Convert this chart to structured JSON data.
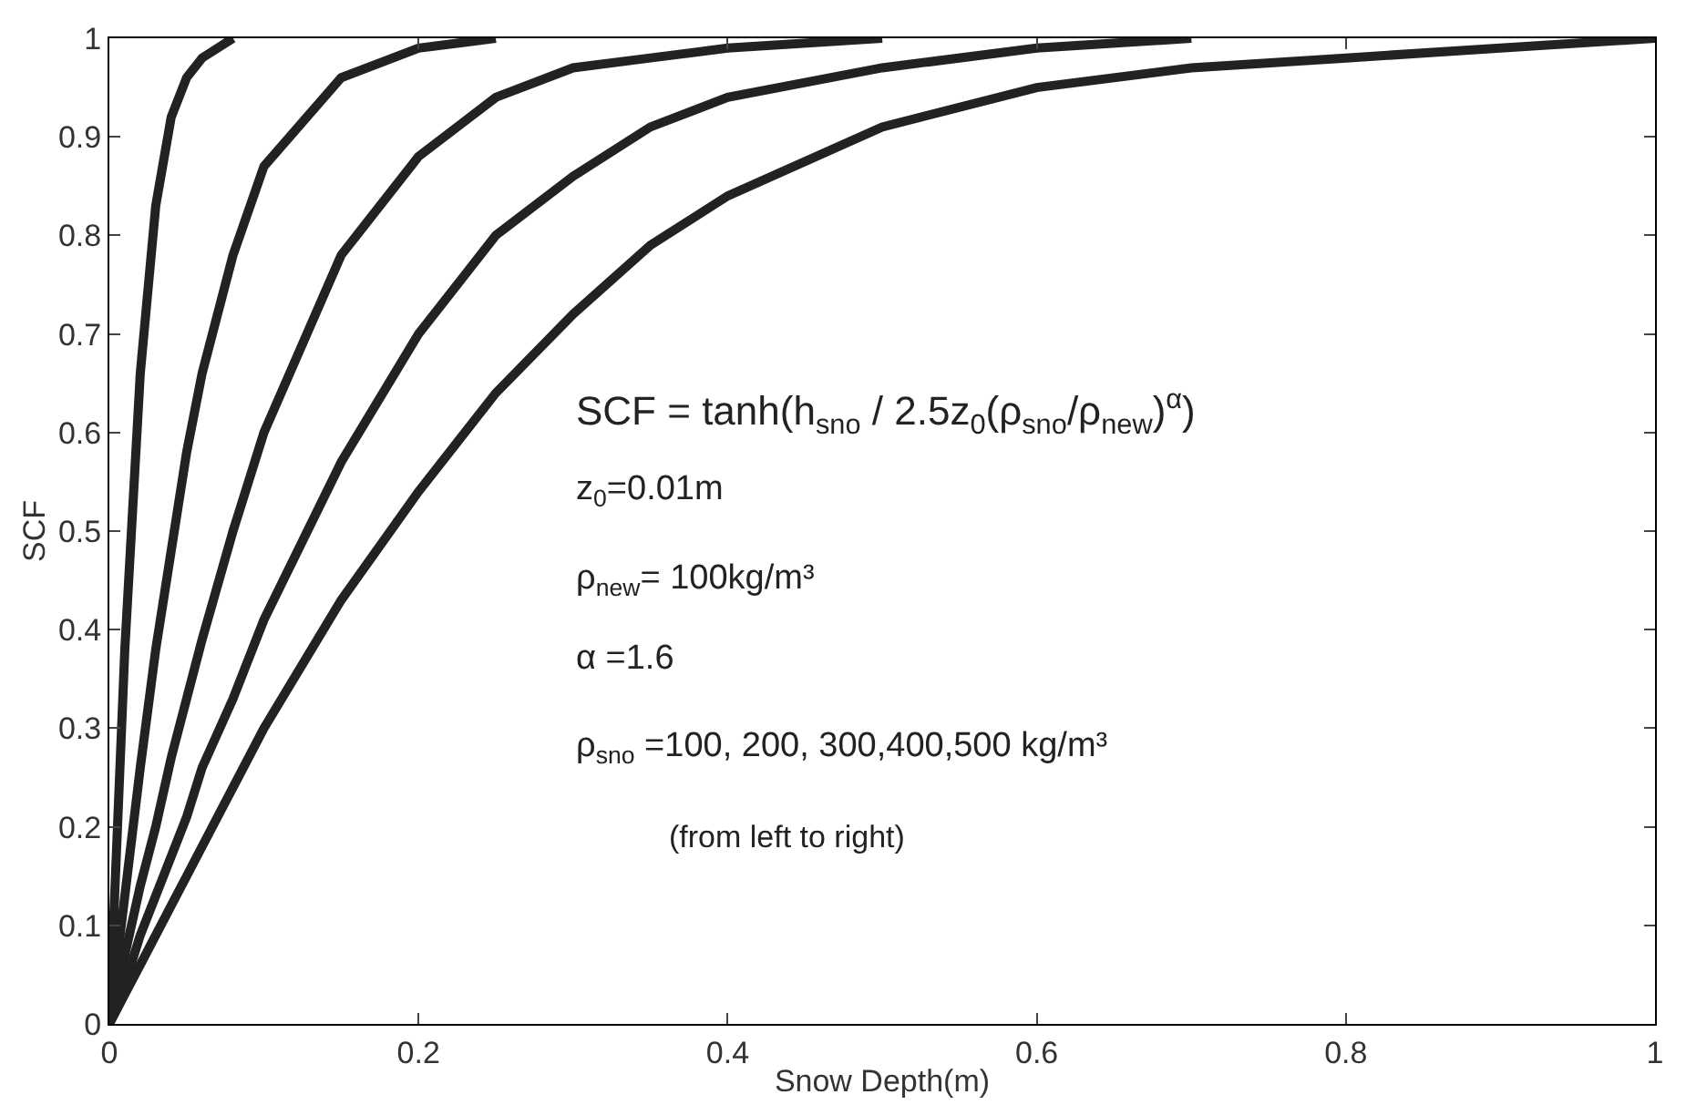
{
  "chart_data": {
    "type": "line",
    "xlabel": "Snow Depth(m)",
    "ylabel": "SCF",
    "x": [
      0,
      0.01,
      0.02,
      0.03,
      0.04,
      0.05,
      0.06,
      0.08,
      0.1,
      0.15,
      0.2,
      0.25,
      0.3,
      0.35,
      0.4,
      0.5,
      0.6,
      0.7,
      0.8,
      0.9,
      1.0
    ],
    "series": [
      {
        "color": "#222222",
        "x": [
          0,
          0.01,
          0.02,
          0.03,
          0.04,
          0.05,
          0.06,
          0.08
        ],
        "values": [
          0,
          0.38,
          0.66,
          0.83,
          0.92,
          0.96,
          0.98,
          1
        ]
      },
      {
        "color": "#222222",
        "x": [
          0,
          0.01,
          0.02,
          0.03,
          0.04,
          0.05,
          0.06,
          0.08,
          0.1,
          0.15,
          0.2,
          0.25
        ],
        "values": [
          0,
          0.13,
          0.26,
          0.38,
          0.48,
          0.58,
          0.66,
          0.78,
          0.87,
          0.96,
          0.99,
          1
        ]
      },
      {
        "color": "#222222",
        "x": [
          0,
          0.01,
          0.02,
          0.03,
          0.04,
          0.05,
          0.06,
          0.08,
          0.1,
          0.15,
          0.2,
          0.25,
          0.3,
          0.35,
          0.4,
          0.5
        ],
        "values": [
          0,
          0.07,
          0.14,
          0.2,
          0.27,
          0.33,
          0.39,
          0.5,
          0.6,
          0.78,
          0.88,
          0.94,
          0.97,
          0.98,
          0.99,
          1
        ]
      },
      {
        "color": "#222222",
        "x": [
          0,
          0.01,
          0.02,
          0.03,
          0.04,
          0.05,
          0.06,
          0.08,
          0.1,
          0.15,
          0.2,
          0.25,
          0.3,
          0.35,
          0.4,
          0.5,
          0.6,
          0.7
        ],
        "values": [
          0,
          0.04,
          0.09,
          0.13,
          0.17,
          0.21,
          0.26,
          0.33,
          0.41,
          0.57,
          0.7,
          0.8,
          0.86,
          0.91,
          0.94,
          0.97,
          0.99,
          1
        ]
      },
      {
        "color": "#222222",
        "values": [
          0,
          0.03,
          0.06,
          0.09,
          0.12,
          0.15,
          0.18,
          0.24,
          0.3,
          0.43,
          0.54,
          0.64,
          0.72,
          0.79,
          0.84,
          0.91,
          0.95,
          0.97,
          0.98,
          0.99,
          1
        ]
      }
    ],
    "xlim": [
      0,
      1
    ],
    "xticks": [
      0,
      0.2,
      0.4,
      0.6,
      0.8,
      1
    ],
    "ylim": [
      0,
      1
    ],
    "yticks": [
      0,
      0.1,
      0.2,
      0.3,
      0.4,
      0.5,
      0.6,
      0.7,
      0.8,
      0.9,
      1
    ],
    "marker": "none",
    "line_style": "solid",
    "annotations": [
      "SCF = tanh(h$_{sno}$ / 2.5z$_{0}$(ρ$_{sno}$/ρ$_{new}$)$^{α}$)",
      "z$_{0}$=0.01m",
      "ρ$_{new}$= 100kg/m³",
      "α =1.6",
      "ρ$_{sno}$ =100, 200, 300,400,500 kg/m³",
      "(from left to right)"
    ]
  }
}
